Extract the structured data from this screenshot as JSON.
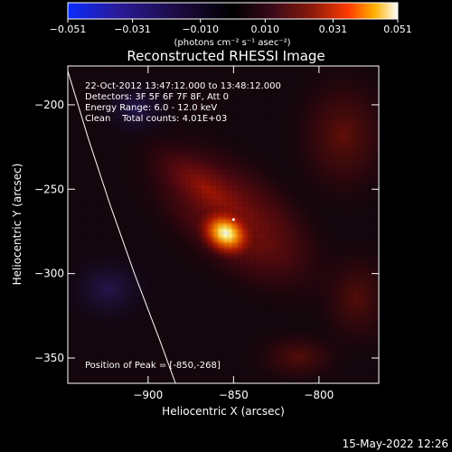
{
  "colorbar": {
    "ticks": [
      "-0.051",
      "-0.031",
      "-0.010",
      "0.010",
      "0.031",
      "0.051"
    ],
    "units_label": "(photons cm⁻² s⁻¹ asec⁻²)",
    "range": [
      -0.051,
      0.051
    ],
    "colormap": [
      "#0a2cff",
      "#2a1a9a",
      "#1a0a3a",
      "#000000",
      "#3a0a1a",
      "#8a1a0a",
      "#ff3a00",
      "#ffb000",
      "#ffffff"
    ]
  },
  "chart_data": {
    "type": "heatmap",
    "title": "Reconstructed RHESSI Image",
    "xlabel": "Heliocentric X (arcsec)",
    "ylabel": "Heliocentric Y (arcsec)",
    "xlim": [
      -947,
      -765
    ],
    "ylim": [
      -365,
      -177
    ],
    "x_ticks": [
      -900,
      -850,
      -800
    ],
    "y_ticks": [
      -200,
      -250,
      -300,
      -350
    ],
    "x_tick_labels": [
      "−900",
      "−850",
      "−800"
    ],
    "y_tick_labels": [
      "−200",
      "−250",
      "−300",
      "−350"
    ],
    "peak": {
      "x": -850,
      "y": -268,
      "value": 0.051
    },
    "annotations": [
      "22-Oct-2012 13:47:12.000 to 13:48:12.000",
      "Detectors: 3F 5F 6F 7F 8F, Att 0",
      "Energy Range: 6.0 - 12.0 keV",
      "Clean    Total counts: 4.01E+03"
    ],
    "peak_label": "Position of Peak = [-850,-268]",
    "limb_points": [
      [
        -947,
        -180
      ],
      [
        -935,
        -220
      ],
      [
        -922,
        -260
      ],
      [
        -908,
        -300
      ],
      [
        -893,
        -340
      ],
      [
        -884,
        -365
      ]
    ],
    "image_colors": {
      "limb": "#ffffff",
      "background": "#000000"
    }
  },
  "footer": {
    "timestamp": "15-May-2022 12:26"
  }
}
